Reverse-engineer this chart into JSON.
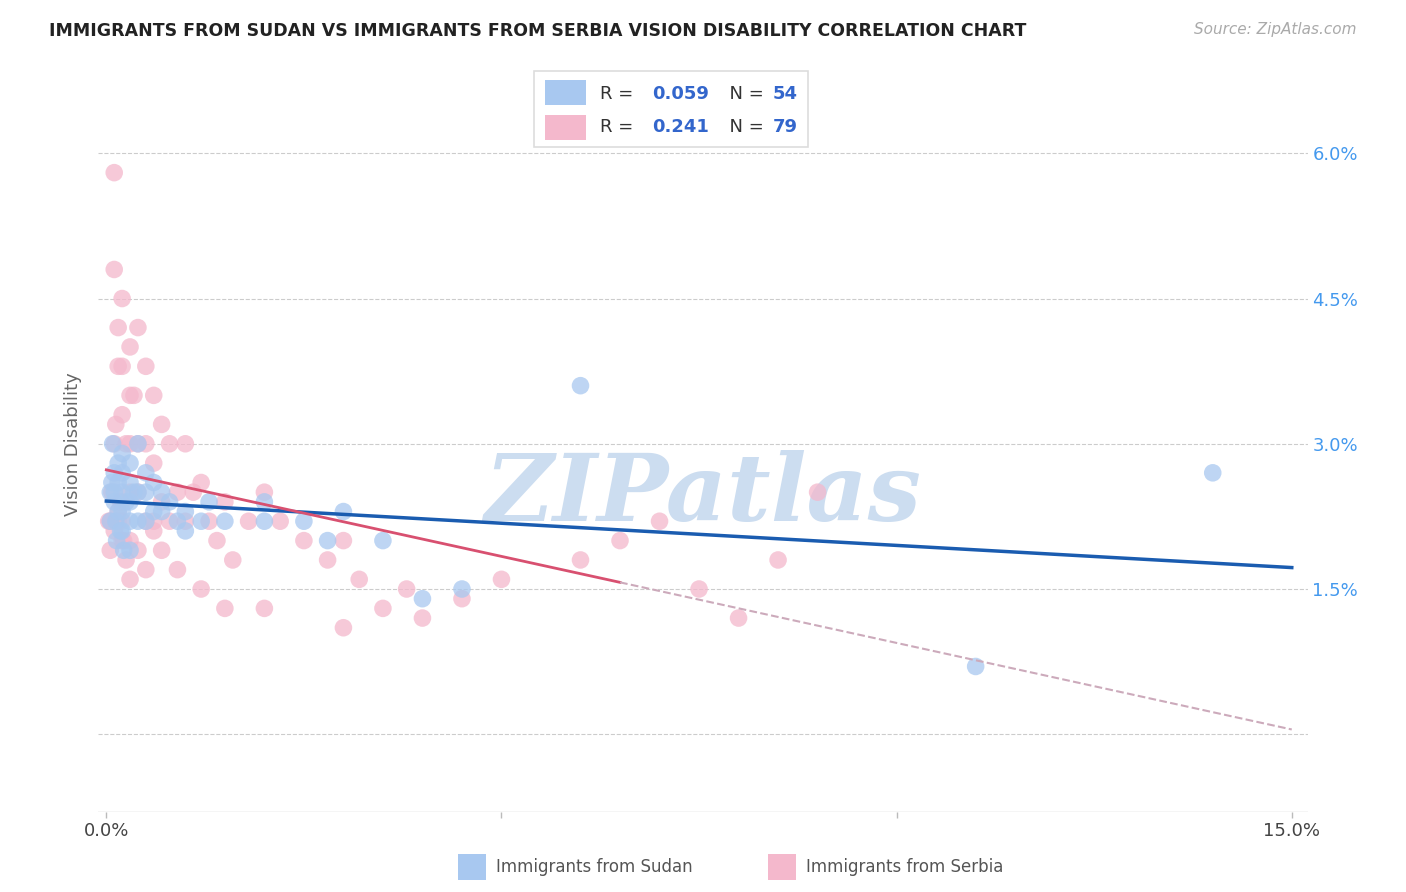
{
  "title": "IMMIGRANTS FROM SUDAN VS IMMIGRANTS FROM SERBIA VISION DISABILITY CORRELATION CHART",
  "source": "Source: ZipAtlas.com",
  "ylabel": "Vision Disability",
  "yticks": [
    0.0,
    0.015,
    0.03,
    0.045,
    0.06
  ],
  "ytick_labels": [
    "",
    "1.5%",
    "3.0%",
    "4.5%",
    "6.0%"
  ],
  "xlim": [
    -0.001,
    0.152
  ],
  "ylim": [
    -0.008,
    0.068
  ],
  "sudan_color": "#a8c8f0",
  "serbia_color": "#f4b8cc",
  "sudan_line_color": "#1a5cb0",
  "serbia_line_color": "#d85070",
  "serbia_dash_color": "#ccaabb",
  "sudan_R": 0.059,
  "sudan_N": 54,
  "serbia_R": 0.241,
  "serbia_N": 79,
  "watermark": "ZIPatlas",
  "watermark_color": "#c8dff0",
  "legend_text_color": "#3366cc",
  "sudan_x": [
    0.0005,
    0.0005,
    0.0007,
    0.0008,
    0.001,
    0.001,
    0.001,
    0.0012,
    0.0013,
    0.0015,
    0.0015,
    0.0015,
    0.0018,
    0.002,
    0.002,
    0.002,
    0.002,
    0.002,
    0.0022,
    0.0025,
    0.003,
    0.003,
    0.003,
    0.003,
    0.003,
    0.0035,
    0.004,
    0.004,
    0.004,
    0.005,
    0.005,
    0.005,
    0.006,
    0.006,
    0.007,
    0.007,
    0.008,
    0.009,
    0.01,
    0.01,
    0.012,
    0.013,
    0.015,
    0.02,
    0.02,
    0.025,
    0.028,
    0.03,
    0.035,
    0.04,
    0.045,
    0.06,
    0.11,
    0.14
  ],
  "sudan_y": [
    0.025,
    0.022,
    0.026,
    0.03,
    0.027,
    0.025,
    0.024,
    0.022,
    0.02,
    0.028,
    0.026,
    0.023,
    0.021,
    0.029,
    0.027,
    0.025,
    0.023,
    0.021,
    0.019,
    0.024,
    0.028,
    0.026,
    0.024,
    0.022,
    0.019,
    0.025,
    0.03,
    0.025,
    0.022,
    0.027,
    0.025,
    0.022,
    0.026,
    0.023,
    0.025,
    0.023,
    0.024,
    0.022,
    0.023,
    0.021,
    0.022,
    0.024,
    0.022,
    0.024,
    0.022,
    0.022,
    0.02,
    0.023,
    0.02,
    0.014,
    0.015,
    0.036,
    0.007,
    0.027
  ],
  "serbia_x": [
    0.0003,
    0.0005,
    0.0007,
    0.001,
    0.001,
    0.001,
    0.0012,
    0.0015,
    0.0015,
    0.0015,
    0.0018,
    0.002,
    0.002,
    0.002,
    0.002,
    0.0022,
    0.0025,
    0.003,
    0.003,
    0.003,
    0.003,
    0.003,
    0.0035,
    0.004,
    0.004,
    0.004,
    0.005,
    0.005,
    0.005,
    0.006,
    0.006,
    0.006,
    0.007,
    0.007,
    0.008,
    0.008,
    0.009,
    0.01,
    0.01,
    0.011,
    0.012,
    0.013,
    0.014,
    0.015,
    0.016,
    0.018,
    0.02,
    0.022,
    0.025,
    0.028,
    0.03,
    0.032,
    0.035,
    0.038,
    0.04,
    0.045,
    0.05,
    0.06,
    0.065,
    0.07,
    0.075,
    0.08,
    0.085,
    0.09,
    0.0005,
    0.001,
    0.0015,
    0.002,
    0.0025,
    0.003,
    0.004,
    0.005,
    0.006,
    0.007,
    0.009,
    0.012,
    0.015,
    0.02,
    0.03
  ],
  "serbia_y": [
    0.022,
    0.022,
    0.025,
    0.058,
    0.048,
    0.03,
    0.032,
    0.042,
    0.038,
    0.022,
    0.024,
    0.045,
    0.038,
    0.033,
    0.022,
    0.02,
    0.03,
    0.04,
    0.035,
    0.03,
    0.025,
    0.02,
    0.035,
    0.042,
    0.03,
    0.025,
    0.038,
    0.03,
    0.022,
    0.035,
    0.028,
    0.022,
    0.032,
    0.024,
    0.03,
    0.022,
    0.025,
    0.03,
    0.022,
    0.025,
    0.026,
    0.022,
    0.02,
    0.024,
    0.018,
    0.022,
    0.025,
    0.022,
    0.02,
    0.018,
    0.02,
    0.016,
    0.013,
    0.015,
    0.012,
    0.014,
    0.016,
    0.018,
    0.02,
    0.022,
    0.015,
    0.012,
    0.018,
    0.025,
    0.019,
    0.021,
    0.023,
    0.02,
    0.018,
    0.016,
    0.019,
    0.017,
    0.021,
    0.019,
    0.017,
    0.015,
    0.013,
    0.013,
    0.011
  ]
}
